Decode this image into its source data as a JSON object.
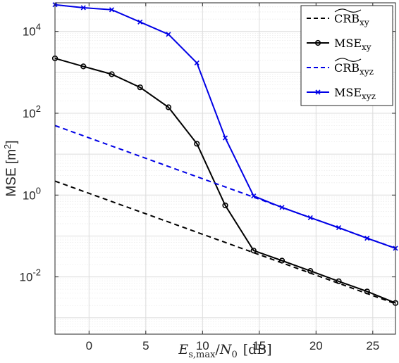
{
  "chart_data": {
    "type": "line",
    "y_scale": "log",
    "grid": true,
    "legend_position": "top-right",
    "xlim": [
      -3,
      27
    ],
    "ylim_log10": [
      -3.4,
      4.7
    ],
    "x_ticks": [
      0,
      5,
      10,
      15,
      20,
      25
    ],
    "x_tick_labels": [
      "0",
      "5",
      "10",
      "15",
      "20",
      "25"
    ],
    "y_ticks_exp": [
      -2,
      0,
      2,
      4
    ],
    "y_tick_base": "10",
    "y_tick_exponents": [
      "-2",
      "0",
      "2",
      "4"
    ],
    "ylabel": "MSE [m",
    "ylabel_sup": "2",
    "ylabel_end": "]",
    "xlabel": {
      "E": "E",
      "sub": "s,max",
      "slash": "/",
      "N": "N",
      "zero": "0",
      "unit": "[dB]"
    },
    "series": [
      {
        "key": "crb_xy",
        "legend_main": "CRB",
        "legend_sub": "xy",
        "tilde": true,
        "color": "#000000",
        "dashed": true,
        "marker": "none",
        "x": [
          -3,
          27
        ],
        "y": [
          2.2,
          0.0022
        ]
      },
      {
        "key": "mse_xy",
        "legend_main": "MSE",
        "legend_sub": "xy",
        "tilde": false,
        "color": "#000000",
        "dashed": false,
        "marker": "circle",
        "x": [
          -3,
          -0.5,
          2,
          4.5,
          7,
          9.5,
          12,
          14.5,
          17,
          19.5,
          22,
          24.5,
          27
        ],
        "y": [
          2200,
          1400,
          900,
          430,
          140,
          18,
          0.56,
          0.044,
          0.025,
          0.014,
          0.0078,
          0.0044,
          0.0023
        ]
      },
      {
        "key": "crb_xyz",
        "legend_main": "CRB",
        "legend_sub": "xyz",
        "tilde": true,
        "color": "#0000e6",
        "dashed": true,
        "marker": "none",
        "x": [
          -3,
          27
        ],
        "y": [
          50,
          0.05
        ]
      },
      {
        "key": "mse_xyz",
        "legend_main": "MSE",
        "legend_sub": "xyz",
        "tilde": false,
        "color": "#0000e6",
        "dashed": false,
        "marker": "x",
        "x": [
          -3,
          -0.5,
          2,
          4.5,
          7,
          9.5,
          12,
          14.5,
          17,
          19.5,
          22,
          24.5,
          27
        ],
        "y": [
          45000,
          38000,
          34000,
          17000,
          8500,
          1700,
          25,
          0.95,
          0.5,
          0.28,
          0.16,
          0.088,
          0.05
        ]
      }
    ]
  }
}
